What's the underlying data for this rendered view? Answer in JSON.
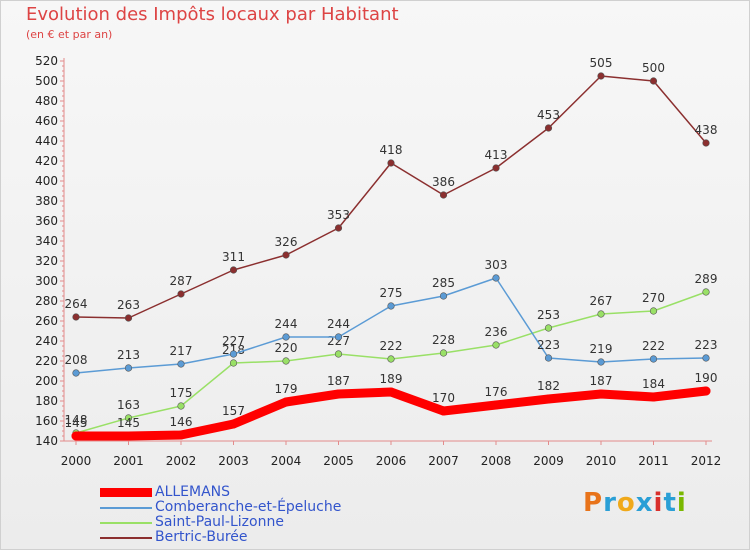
{
  "header": {
    "title": "Evolution des Impôts locaux par Habitant",
    "subtitle": "(en € et par an)"
  },
  "logo": {
    "text": "Proxiti",
    "colors": [
      "#e8731a",
      "#2a9fd6",
      "#f0a91a",
      "#2a9fd6",
      "#d9302c",
      "#2a9fd6",
      "#7ab800"
    ]
  },
  "chart_data": {
    "type": "line",
    "x": [
      2000,
      2001,
      2002,
      2003,
      2004,
      2005,
      2006,
      2007,
      2008,
      2009,
      2010,
      2011,
      2012
    ],
    "xtick_labels": [
      "2000",
      "2001",
      "2002",
      "2003",
      "2004",
      "2005",
      "2006",
      "2007",
      "2008",
      "2009",
      "2010",
      "2011",
      "2012"
    ],
    "ylim": [
      140,
      520
    ],
    "yticks": [
      140,
      160,
      180,
      200,
      220,
      240,
      260,
      280,
      300,
      320,
      340,
      360,
      380,
      400,
      420,
      440,
      460,
      480,
      500,
      520
    ],
    "grid": false,
    "legend_position": "bottom-left",
    "series": [
      {
        "name": "Bertric-Burée",
        "color": "#8b2f2f",
        "values": [
          264,
          263,
          287,
          311,
          326,
          353,
          418,
          386,
          413,
          453,
          505,
          500,
          438
        ]
      },
      {
        "name": "Saint-Paul-Lizonne",
        "color": "#99e066",
        "values": [
          148,
          163,
          175,
          218,
          220,
          227,
          222,
          228,
          236,
          253,
          267,
          270,
          289
        ]
      },
      {
        "name": "Comberanche-et-Épeluche",
        "color": "#5b9bd5",
        "values": [
          208,
          213,
          217,
          227,
          244,
          244,
          275,
          285,
          303,
          223,
          219,
          222,
          223
        ]
      },
      {
        "name": "ALLEMANS",
        "color": "#ff0000",
        "values": [
          145,
          145,
          146,
          157,
          179,
          187,
          189,
          170,
          176,
          182,
          187,
          184,
          190
        ]
      }
    ],
    "legend_order": [
      "ALLEMANS",
      "Comberanche-et-Épeluche",
      "Saint-Paul-Lizonne",
      "Bertric-Burée"
    ]
  }
}
